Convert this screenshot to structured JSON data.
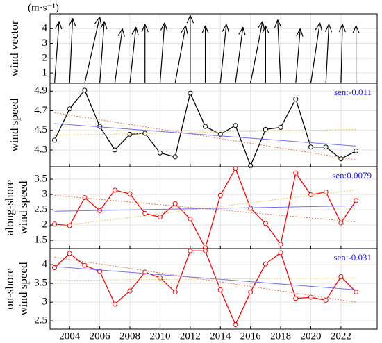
{
  "chart_data": [
    {
      "type": "quiver",
      "ylabel": "wind vector",
      "unit": "(m·s⁻¹)",
      "color": "#000000",
      "x": [
        2003,
        2004,
        2005,
        2006,
        2007,
        2008,
        2009,
        2010,
        2011,
        2012,
        2013,
        2014,
        2015,
        2016,
        2017,
        2018,
        2019,
        2020,
        2021,
        2022,
        2023
      ],
      "tip_x": [
        2003.3,
        2004.2,
        2006.0,
        2006.3,
        2007.5,
        2008.4,
        2009.0,
        2010.3,
        2011.7,
        2012.0,
        2013.0,
        2014.4,
        2015.5,
        2016.8,
        2017.0,
        2017.8,
        2019.3,
        2020.6,
        2021.2,
        2022.1,
        2023.0
      ],
      "tip_y": [
        4.5,
        4.7,
        4.8,
        4.5,
        4.0,
        4.1,
        4.3,
        4.4,
        4.2,
        4.9,
        4.2,
        4.3,
        4.1,
        4.5,
        4.2,
        4.6,
        4.0,
        4.4,
        4.3,
        4.3,
        4.2
      ],
      "ylim": [
        0.3,
        5
      ],
      "yticks": [
        1,
        2,
        3,
        4
      ]
    },
    {
      "type": "line",
      "ylabel": [
        "wind speed"
      ],
      "annotation": "sen:-0.011",
      "x": [
        2003,
        2004,
        2005,
        2006,
        2007,
        2008,
        2009,
        2010,
        2011,
        2012,
        2013,
        2014,
        2015,
        2016,
        2017,
        2018,
        2019,
        2020,
        2021,
        2022,
        2023
      ],
      "series": [
        {
          "color": "#000000",
          "marker": true,
          "values": [
            4.4,
            4.72,
            4.91,
            4.54,
            4.3,
            4.46,
            4.47,
            4.27,
            4.23,
            4.88,
            4.54,
            4.46,
            4.55,
            4.14,
            4.51,
            4.53,
            4.82,
            4.33,
            4.33,
            4.21,
            4.29
          ]
        },
        {
          "color": "#6f6ff5",
          "x": [
            2003,
            2023
          ],
          "values": [
            4.57,
            4.34
          ]
        },
        {
          "color": "#e8704f",
          "dash": true,
          "x": [
            2003,
            2023
          ],
          "values": [
            4.68,
            4.2
          ]
        },
        {
          "color": "#e6c65a",
          "dash": true,
          "x": [
            2003,
            2023
          ],
          "values": [
            4.45,
            4.51
          ]
        }
      ],
      "ylim": [
        4.13,
        4.98
      ],
      "yticks": [
        4.3,
        4.5,
        4.7,
        4.9
      ]
    },
    {
      "type": "line",
      "ylabel": [
        "along-shore",
        "wind speed"
      ],
      "annotation": "sen:0.0079",
      "x": [
        2003,
        2004,
        2005,
        2006,
        2007,
        2008,
        2009,
        2010,
        2011,
        2012,
        2013,
        2014,
        2015,
        2016,
        2017,
        2018,
        2019,
        2020,
        2021,
        2022,
        2023
      ],
      "series": [
        {
          "color": "#ff0000",
          "marker": true,
          "values": [
            2.03,
            1.98,
            2.9,
            2.47,
            3.14,
            3.02,
            2.38,
            2.26,
            2.7,
            2.2,
            1.25,
            2.97,
            3.85,
            2.55,
            2.05,
            1.37,
            3.7,
            2.99,
            3.08,
            2.07,
            2.8
          ]
        },
        {
          "color": "#6f6ff5",
          "x": [
            2003,
            2023
          ],
          "values": [
            2.45,
            2.63
          ]
        },
        {
          "color": "#e8704f",
          "dash": true,
          "x": [
            2003,
            2023
          ],
          "values": [
            2.97,
            2.1
          ]
        },
        {
          "color": "#e6c65a",
          "dash": true,
          "x": [
            2003,
            2023
          ],
          "values": [
            1.95,
            3.15
          ]
        }
      ],
      "ylim": [
        1.23,
        3.91
      ],
      "yticks": [
        1.5,
        2,
        2.5,
        3,
        3.5
      ]
    },
    {
      "type": "line",
      "ylabel": [
        "on-shore",
        "wind speed"
      ],
      "annotation": "sen:-0.031",
      "x": [
        2003,
        2004,
        2005,
        2006,
        2007,
        2008,
        2009,
        2010,
        2011,
        2012,
        2013,
        2014,
        2015,
        2016,
        2017,
        2018,
        2019,
        2020,
        2021,
        2022,
        2023
      ],
      "series": [
        {
          "color": "#ff0000",
          "marker": true,
          "values": [
            3.92,
            4.3,
            3.98,
            3.82,
            2.95,
            3.3,
            3.8,
            3.65,
            3.27,
            4.37,
            4.37,
            3.33,
            2.4,
            3.27,
            4.02,
            4.32,
            3.1,
            3.13,
            3.05,
            3.68,
            3.27
          ]
        },
        {
          "color": "#6f6ff5",
          "x": [
            2003,
            2023
          ],
          "values": [
            3.95,
            3.33
          ]
        },
        {
          "color": "#e8704f",
          "dash": true,
          "x": [
            2003,
            2023
          ],
          "values": [
            4.2,
            3.0
          ]
        },
        {
          "color": "#e6c65a",
          "dash": true,
          "x": [
            2003,
            2023
          ],
          "values": [
            3.58,
            3.65
          ]
        }
      ],
      "ylim": [
        2.28,
        4.43
      ],
      "yticks": [
        2.5,
        3,
        3.5,
        4
      ],
      "xlim": [
        2002.7,
        2024.4
      ],
      "xticks": [
        2004,
        2006,
        2008,
        2010,
        2012,
        2014,
        2016,
        2018,
        2020,
        2022
      ]
    }
  ]
}
